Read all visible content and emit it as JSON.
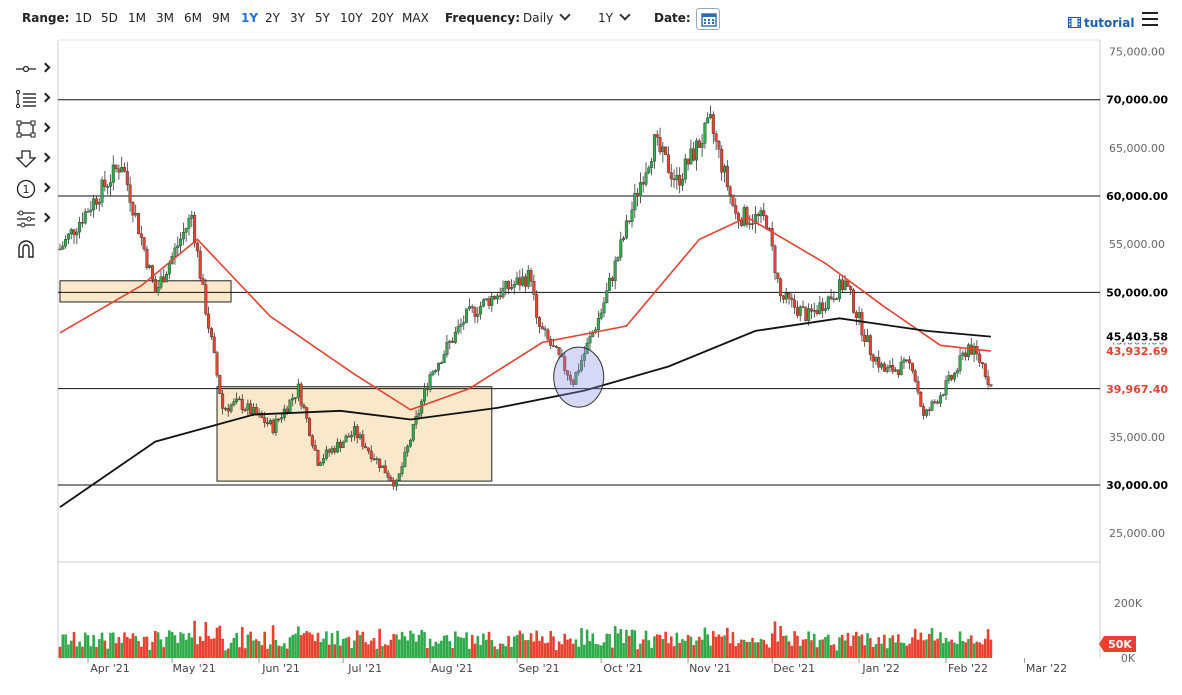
{
  "toolbar": {
    "range_label": "Range:",
    "ranges": [
      "1D",
      "5D",
      "1M",
      "3M",
      "6M",
      "9M",
      "1Y",
      "2Y",
      "3Y",
      "5Y",
      "10Y",
      "20Y",
      "MAX"
    ],
    "active_range": "1Y",
    "frequency_label": "Frequency:",
    "frequency_value": "Daily",
    "period_value": "1Y",
    "date_label": "Date:",
    "tutorial_label": "tutorial"
  },
  "side_tools": [
    "crosshair-tool-icon",
    "fibonacci-tool-icon",
    "rectangle-tool-icon",
    "arrow-down-tool-icon",
    "annotation-number-icon",
    "indicator-tool-icon",
    "magnet-tool-icon"
  ],
  "side_tool_number": "1",
  "chart_data": {
    "type": "candlestick",
    "x_ticks": [
      "Apr '21",
      "May '21",
      "Jun '21",
      "Jul '21",
      "Aug '21",
      "Sep '21",
      "Oct '21",
      "Nov '21",
      "Dec '21",
      "Jan '22",
      "Feb '22",
      "Mar '22"
    ],
    "y_ticks": [
      "25,000.00",
      "30,000.00",
      "35,000.00",
      "40,000.00",
      "45,000.00",
      "50,000.00",
      "55,000.00",
      "60,000.00",
      "65,000.00",
      "70,000.00",
      "75,000.00"
    ],
    "ylim": [
      22000,
      76200
    ],
    "volume_ticks": [
      "200K",
      "50K",
      "0K"
    ],
    "price_labels": [
      {
        "text": "70,000.00",
        "value": 70000,
        "color": "#000000"
      },
      {
        "text": "60,000.00",
        "value": 60000,
        "color": "#000000"
      },
      {
        "text": "50,000.00",
        "value": 50000,
        "color": "#000000"
      },
      {
        "text": "45,403.58",
        "value": 45403.58,
        "color": "#000000"
      },
      {
        "text": "43,932.69",
        "value": 43932.69,
        "color": "#e8412f"
      },
      {
        "text": "39,967.40",
        "value": 39967.4,
        "color": "#e8412f"
      },
      {
        "text": "30,000.00",
        "value": 30000,
        "color": "#000000"
      }
    ],
    "volume_label": {
      "text": "50K",
      "color": "#e8412f"
    },
    "horizontal_levels": [
      70000,
      60000,
      50000,
      40000,
      30000
    ],
    "zones": [
      {
        "from": "2021-03-22",
        "to": "2021-05-22",
        "low": 49000,
        "high": 51200
      },
      {
        "from": "2021-05-17",
        "to": "2021-08-23",
        "low": 30400,
        "high": 40200
      }
    ],
    "circle_annotation": {
      "center": "2021-09-23",
      "value": 41200
    },
    "key_points": [
      {
        "date": "2021-03-22",
        "close": 54500
      },
      {
        "date": "2021-04-01",
        "close": 58700
      },
      {
        "date": "2021-04-13",
        "close": 63500
      },
      {
        "date": "2021-04-25",
        "close": 50000
      },
      {
        "date": "2021-05-08",
        "close": 58000
      },
      {
        "date": "2021-05-12",
        "close": 50000
      },
      {
        "date": "2021-05-19",
        "close": 38000
      },
      {
        "date": "2021-05-25",
        "close": 38500
      },
      {
        "date": "2021-06-06",
        "close": 36000
      },
      {
        "date": "2021-06-15",
        "close": 40000
      },
      {
        "date": "2021-06-22",
        "close": 32500
      },
      {
        "date": "2021-07-05",
        "close": 35500
      },
      {
        "date": "2021-07-20",
        "close": 30000
      },
      {
        "date": "2021-08-01",
        "close": 41500
      },
      {
        "date": "2021-08-14",
        "close": 47500
      },
      {
        "date": "2021-08-23",
        "close": 49500
      },
      {
        "date": "2021-09-06",
        "close": 51800
      },
      {
        "date": "2021-09-08",
        "close": 46800
      },
      {
        "date": "2021-09-21",
        "close": 40800
      },
      {
        "date": "2021-10-01",
        "close": 48000
      },
      {
        "date": "2021-10-15",
        "close": 61500
      },
      {
        "date": "2021-10-20",
        "close": 65500
      },
      {
        "date": "2021-10-28",
        "close": 61500
      },
      {
        "date": "2021-11-09",
        "close": 67500
      },
      {
        "date": "2021-11-18",
        "close": 58000
      },
      {
        "date": "2021-11-29",
        "close": 57500
      },
      {
        "date": "2021-12-04",
        "close": 49500
      },
      {
        "date": "2021-12-14",
        "close": 47500
      },
      {
        "date": "2021-12-27",
        "close": 51000
      },
      {
        "date": "2022-01-05",
        "close": 44000
      },
      {
        "date": "2022-01-10",
        "close": 41800
      },
      {
        "date": "2022-01-20",
        "close": 42500
      },
      {
        "date": "2022-01-24",
        "close": 37000
      },
      {
        "date": "2022-02-04",
        "close": 41500
      },
      {
        "date": "2022-02-09",
        "close": 44500
      },
      {
        "date": "2022-02-14",
        "close": 42500
      },
      {
        "date": "2022-02-17",
        "close": 40200
      }
    ],
    "ma50_points": [
      {
        "date": "2021-03-22",
        "value": 45800
      },
      {
        "date": "2021-04-20",
        "value": 50700
      },
      {
        "date": "2021-05-10",
        "value": 55500
      },
      {
        "date": "2021-06-05",
        "value": 47500
      },
      {
        "date": "2021-07-05",
        "value": 41500
      },
      {
        "date": "2021-07-25",
        "value": 37800
      },
      {
        "date": "2021-08-15",
        "value": 40000
      },
      {
        "date": "2021-09-10",
        "value": 44800
      },
      {
        "date": "2021-10-10",
        "value": 46500
      },
      {
        "date": "2021-11-05",
        "value": 55500
      },
      {
        "date": "2021-11-22",
        "value": 57800
      },
      {
        "date": "2021-12-20",
        "value": 53000
      },
      {
        "date": "2022-01-10",
        "value": 48500
      },
      {
        "date": "2022-01-30",
        "value": 44500
      },
      {
        "date": "2022-02-17",
        "value": 43900
      }
    ],
    "ma200_points": [
      {
        "date": "2021-03-22",
        "value": 27700
      },
      {
        "date": "2021-04-25",
        "value": 34500
      },
      {
        "date": "2021-05-30",
        "value": 37300
      },
      {
        "date": "2021-06-30",
        "value": 37700
      },
      {
        "date": "2021-07-25",
        "value": 36800
      },
      {
        "date": "2021-08-25",
        "value": 38000
      },
      {
        "date": "2021-09-25",
        "value": 39800
      },
      {
        "date": "2021-10-25",
        "value": 42300
      },
      {
        "date": "2021-11-25",
        "value": 46000
      },
      {
        "date": "2021-12-25",
        "value": 47300
      },
      {
        "date": "2022-01-25",
        "value": 46000
      },
      {
        "date": "2022-02-17",
        "value": 45400
      }
    ]
  }
}
